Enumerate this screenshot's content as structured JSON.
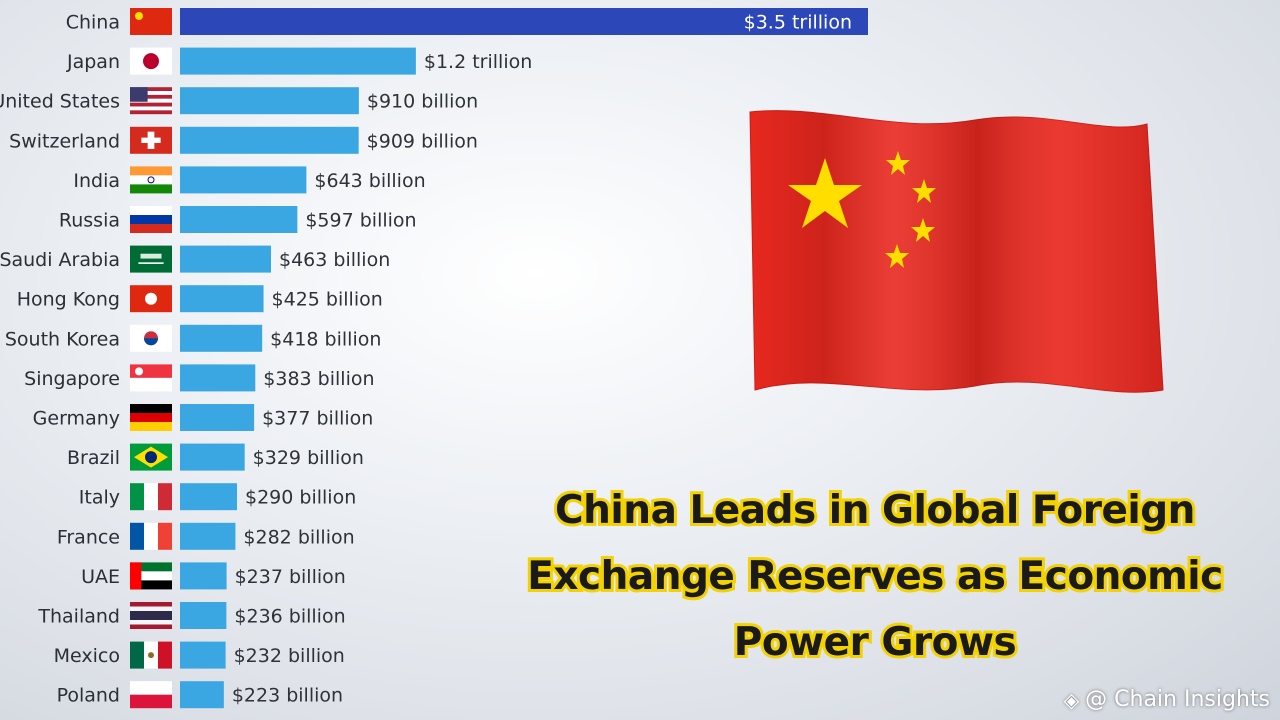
{
  "chart_data": {
    "type": "bar",
    "orientation": "horizontal",
    "categories": [
      "China",
      "Japan",
      "United States",
      "Switzerland",
      "India",
      "Russia",
      "Saudi Arabia",
      "Hong Kong",
      "South Korea",
      "Singapore",
      "Germany",
      "Brazil",
      "Italy",
      "France",
      "UAE",
      "Thailand",
      "Mexico",
      "Poland"
    ],
    "values": [
      3500,
      1200,
      910,
      909,
      643,
      597,
      463,
      425,
      418,
      383,
      377,
      329,
      290,
      282,
      237,
      236,
      232,
      223
    ],
    "value_labels": [
      "$3.5 trillion",
      "$1.2 trillion",
      "$910 billion",
      "$909 billion",
      "$643 billion",
      "$597 billion",
      "$463 billion",
      "$425 billion",
      "$418 billion",
      "$383 billion",
      "$377 billion",
      "$329 billion",
      "$290 billion",
      "$282 billion",
      "$237 billion",
      "$236 billion",
      "$232 billion",
      "$223 billion"
    ],
    "unit": "billion USD",
    "xlim": [
      0,
      3500
    ],
    "highlight_index": 0,
    "grid": false,
    "legend": "none",
    "colors": {
      "bar": "#3aa7e3",
      "highlight": "#2b47b8"
    }
  },
  "headline": "China  Leads in Global Foreign Exchange Reserves as Economic Power Grows",
  "watermark": {
    "text": "@ Chain Insights",
    "icon": "binance-diamond-icon"
  },
  "illustration": {
    "name": "china-flag-image",
    "colors": {
      "field": "#e8281f",
      "stars": "#ffde00"
    }
  }
}
